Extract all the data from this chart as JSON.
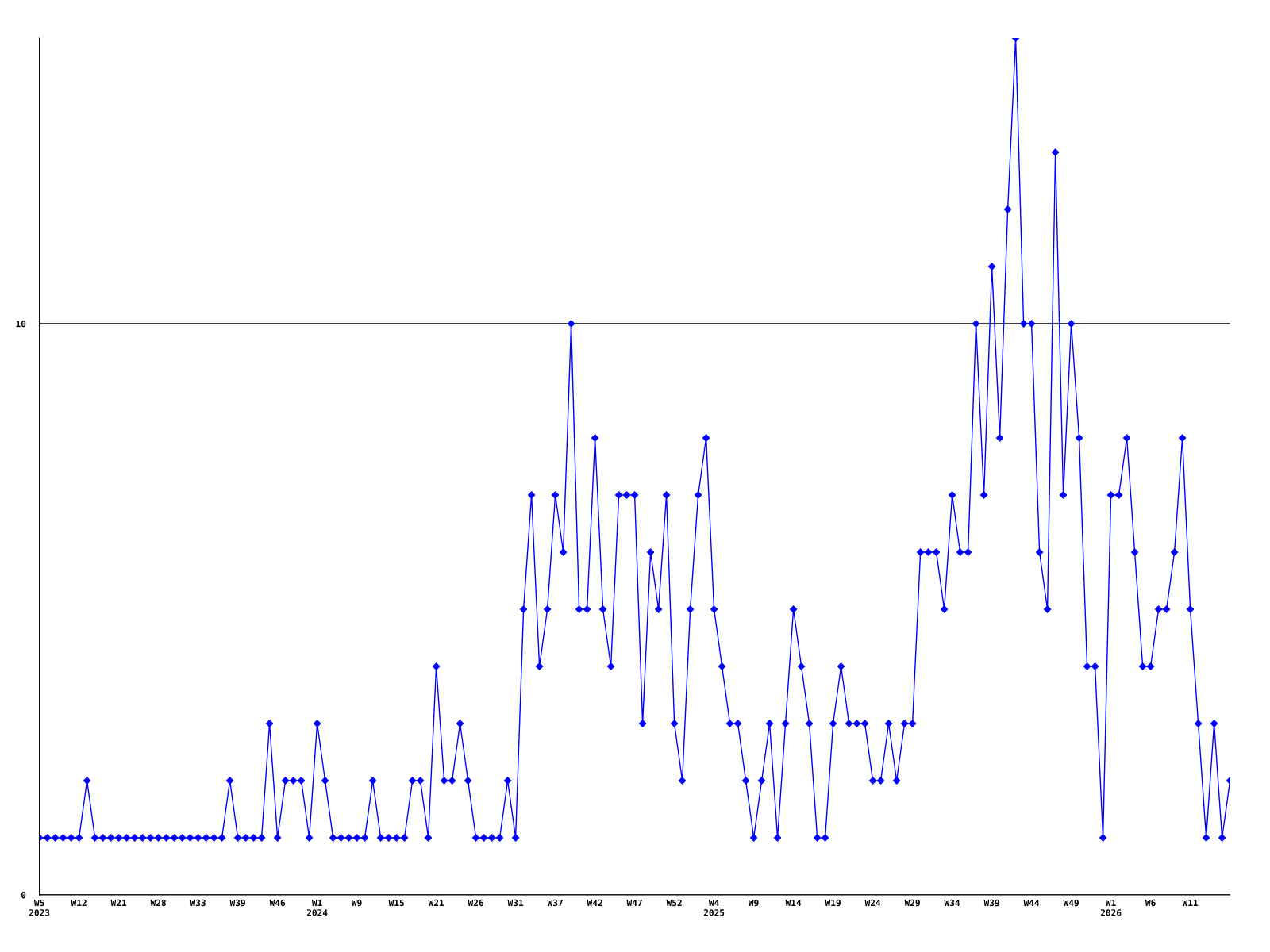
{
  "chart_data": {
    "type": "line",
    "categories": [
      "W5\n2023",
      null,
      null,
      null,
      null,
      "W12",
      null,
      null,
      null,
      null,
      "W21",
      null,
      null,
      null,
      null,
      "W28",
      null,
      null,
      null,
      null,
      "W33",
      null,
      null,
      null,
      null,
      "W39",
      null,
      null,
      null,
      null,
      "W46",
      null,
      null,
      null,
      null,
      "W1\n2024",
      null,
      null,
      null,
      null,
      "W9",
      null,
      null,
      null,
      null,
      "W15",
      null,
      null,
      null,
      null,
      "W21",
      null,
      null,
      null,
      null,
      "W26",
      null,
      null,
      null,
      null,
      "W31",
      null,
      null,
      null,
      null,
      "W37",
      null,
      null,
      null,
      null,
      "W42",
      null,
      null,
      null,
      null,
      "W47",
      null,
      null,
      null,
      null,
      "W52",
      null,
      null,
      null,
      null,
      "W4\n2025",
      null,
      null,
      null,
      null,
      "W9",
      null,
      null,
      null,
      null,
      "W14",
      null,
      null,
      null,
      null,
      "W19",
      null,
      null,
      null,
      null,
      "W24",
      null,
      null,
      null,
      null,
      "W29",
      null,
      null,
      null,
      null,
      "W34",
      null,
      null,
      null,
      null,
      "W39",
      null,
      null,
      null,
      null,
      "W44",
      null,
      null,
      null,
      null,
      "W49",
      null,
      null,
      null,
      null,
      "W1\n2026",
      null,
      null,
      null,
      null,
      "W6",
      null,
      null,
      null,
      null,
      "W11",
      null,
      null,
      null,
      null,
      null
    ],
    "series": [
      {
        "color": "#0000ff",
        "values": [
          1,
          1,
          1,
          1,
          1,
          1,
          2,
          1,
          1,
          1,
          1,
          1,
          1,
          1,
          1,
          1,
          1,
          1,
          1,
          1,
          1,
          1,
          1,
          1,
          2,
          1,
          1,
          1,
          1,
          3,
          1,
          2,
          2,
          2,
          1,
          3,
          2,
          1,
          1,
          1,
          1,
          1,
          2,
          1,
          1,
          1,
          1,
          2,
          2,
          1,
          4,
          2,
          2,
          3,
          2,
          1,
          1,
          1,
          1,
          2,
          1,
          5,
          7,
          4,
          5,
          7,
          6,
          10,
          5,
          5,
          8,
          5,
          4,
          7,
          7,
          7,
          3,
          6,
          5,
          7,
          3,
          2,
          5,
          7,
          8,
          5,
          4,
          3,
          3,
          2,
          1,
          2,
          3,
          1,
          3,
          5,
          4,
          3,
          1,
          1,
          3,
          4,
          3,
          3,
          3,
          2,
          2,
          3,
          2,
          3,
          3,
          6,
          6,
          6,
          5,
          7,
          6,
          6,
          10,
          7,
          11,
          8,
          12,
          15,
          10,
          10,
          6,
          5,
          13,
          7,
          10,
          8,
          4,
          4,
          1,
          7,
          7,
          8,
          6,
          4,
          4,
          5,
          5,
          6,
          8,
          5,
          3,
          1,
          3,
          1,
          2
        ]
      }
    ],
    "ylim": [
      0,
      15
    ],
    "yticks": [
      0,
      10
    ],
    "grid": "y",
    "marker": "diamond",
    "line_style": "solid",
    "legend": false
  }
}
